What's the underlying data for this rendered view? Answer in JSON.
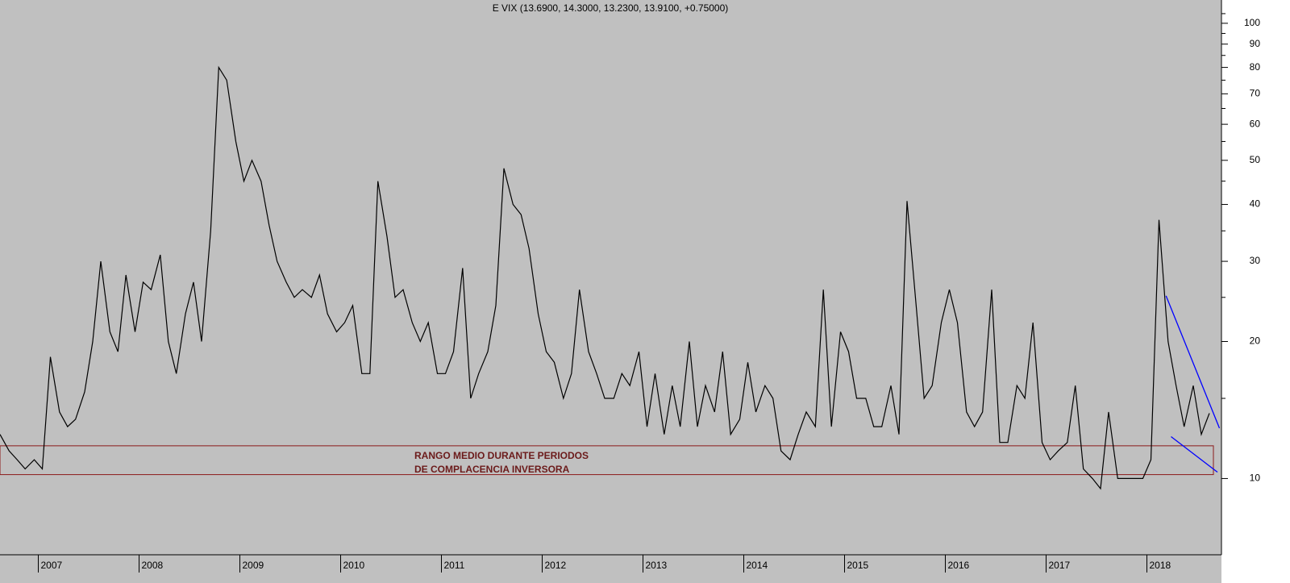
{
  "chart_data": {
    "type": "line",
    "title": "E VIX (13.6900, 14.3000, 13.2300, 13.9100, +0.75000)",
    "x": [
      2006.62,
      2006.71,
      2006.79,
      2006.87,
      2006.96,
      2007.04,
      2007.12,
      2007.21,
      2007.29,
      2007.37,
      2007.46,
      2007.54,
      2007.62,
      2007.71,
      2007.79,
      2007.87,
      2007.96,
      2008.04,
      2008.12,
      2008.21,
      2008.29,
      2008.37,
      2008.46,
      2008.54,
      2008.62,
      2008.71,
      2008.79,
      2008.87,
      2008.96,
      2009.04,
      2009.12,
      2009.21,
      2009.29,
      2009.37,
      2009.46,
      2009.54,
      2009.62,
      2009.71,
      2009.79,
      2009.87,
      2009.96,
      2010.04,
      2010.12,
      2010.21,
      2010.29,
      2010.37,
      2010.46,
      2010.54,
      2010.62,
      2010.71,
      2010.79,
      2010.87,
      2010.96,
      2011.04,
      2011.12,
      2011.21,
      2011.29,
      2011.37,
      2011.46,
      2011.54,
      2011.62,
      2011.71,
      2011.79,
      2011.87,
      2011.96,
      2012.04,
      2012.12,
      2012.21,
      2012.29,
      2012.37,
      2012.46,
      2012.54,
      2012.62,
      2012.71,
      2012.79,
      2012.87,
      2012.96,
      2013.04,
      2013.12,
      2013.21,
      2013.29,
      2013.37,
      2013.46,
      2013.54,
      2013.62,
      2013.71,
      2013.79,
      2013.87,
      2013.96,
      2014.04,
      2014.12,
      2014.21,
      2014.29,
      2014.37,
      2014.46,
      2014.54,
      2014.62,
      2014.71,
      2014.79,
      2014.87,
      2014.96,
      2015.04,
      2015.12,
      2015.21,
      2015.29,
      2015.37,
      2015.46,
      2015.54,
      2015.62,
      2015.71,
      2015.79,
      2015.87,
      2015.96,
      2016.04,
      2016.12,
      2016.21,
      2016.29,
      2016.37,
      2016.46,
      2016.54,
      2016.62,
      2016.71,
      2016.79,
      2016.87,
      2016.96,
      2017.04,
      2017.12,
      2017.21,
      2017.29,
      2017.37,
      2017.46,
      2017.54,
      2017.62,
      2017.71,
      2017.79,
      2017.87,
      2017.96,
      2018.04,
      2018.12,
      2018.21,
      2018.29,
      2018.37,
      2018.46,
      2018.54,
      2018.62
    ],
    "values": [
      12.5,
      11.5,
      11,
      10.5,
      11,
      10.5,
      18.5,
      14,
      13,
      13.5,
      15.5,
      20,
      30,
      21,
      19,
      28,
      21,
      27,
      26,
      31,
      20,
      17,
      23,
      27,
      20,
      35,
      80,
      75,
      55,
      45,
      50,
      45,
      36,
      30,
      27,
      25,
      26,
      25,
      28,
      23,
      21,
      22,
      24,
      17,
      17,
      45,
      34,
      25,
      26,
      22,
      20,
      22,
      17,
      17,
      19,
      29,
      15,
      17,
      19,
      24,
      48,
      40,
      38,
      32,
      23,
      19,
      18,
      15,
      17,
      26,
      19,
      17,
      15,
      15,
      17,
      16,
      19,
      13,
      17,
      12.5,
      16,
      13,
      20,
      13,
      16,
      14,
      19,
      12.5,
      13.5,
      18,
      14,
      16,
      15,
      11.5,
      11,
      12.5,
      14,
      13,
      26,
      13,
      21,
      19,
      15,
      15,
      13,
      13,
      16,
      12.5,
      40.7,
      24,
      15,
      16,
      22,
      26,
      22,
      14,
      13,
      14,
      26,
      12,
      12,
      16,
      15,
      22,
      12,
      11,
      11.5,
      12,
      16,
      10.5,
      10,
      9.5,
      14,
      10,
      10,
      10,
      10,
      11,
      37,
      20,
      16,
      13,
      16,
      12.5,
      13.91
    ],
    "color": "#000000",
    "xlim": [
      2006.62,
      2018.74
    ],
    "ylim": [
      6.8,
      112.5
    ],
    "log_y": true,
    "yticks": [
      10,
      20,
      30,
      40,
      50,
      60,
      70,
      80,
      90,
      100
    ],
    "yticks_minor": [
      15,
      25,
      35,
      45,
      55,
      65,
      75,
      85,
      95,
      105
    ],
    "xticks": [
      2007,
      2008,
      2009,
      2010,
      2011,
      2012,
      2013,
      2014,
      2015,
      2016,
      2017,
      2018
    ],
    "band": {
      "ylim": [
        10.2,
        11.8
      ],
      "xlim": [
        2006.62,
        2018.66
      ],
      "color": "#8b1a1a",
      "label": [
        "RANGO MEDIO DURANTE PERIODOS",
        "DE COMPLACENCIA INVERSORA"
      ]
    },
    "trendlines": [
      {
        "x": [
          2018.19,
          2018.72
        ],
        "y": [
          25.2,
          12.9
        ]
      },
      {
        "x": [
          2018.24,
          2018.7
        ],
        "y": [
          12.36,
          10.33
        ]
      }
    ],
    "trendline_color": "#0000ff"
  }
}
